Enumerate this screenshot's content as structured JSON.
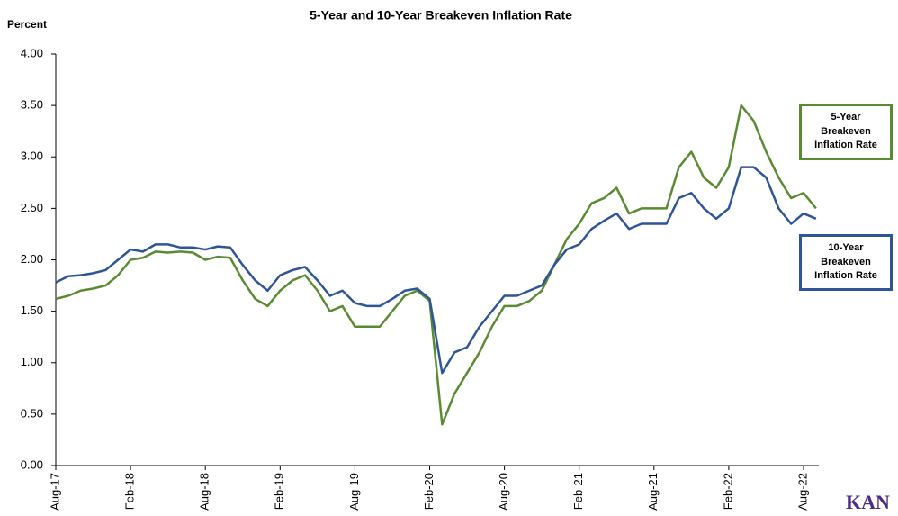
{
  "chart_data": {
    "type": "line",
    "title": "5-Year and 10-Year Breakeven Inflation Rate",
    "y_label": "Percent",
    "logo": "KAN",
    "categories": [
      "Aug-17",
      null,
      null,
      null,
      null,
      null,
      "Feb-18",
      null,
      null,
      null,
      null,
      null,
      "Aug-18",
      null,
      null,
      null,
      null,
      null,
      "Feb-19",
      null,
      null,
      null,
      null,
      null,
      "Aug-19",
      null,
      null,
      null,
      null,
      null,
      "Feb-20",
      null,
      null,
      null,
      null,
      null,
      "Aug-20",
      null,
      null,
      null,
      null,
      null,
      "Feb-21",
      null,
      null,
      null,
      null,
      null,
      "Aug-21",
      null,
      null,
      null,
      null,
      null,
      "Feb-22",
      null,
      null,
      null,
      null,
      null,
      "Aug-22",
      null
    ],
    "series": [
      {
        "name": "5-Year Breakeven Inflation Rate",
        "color": "#5a8a32",
        "values": [
          1.62,
          1.65,
          1.7,
          1.72,
          1.75,
          1.85,
          2.0,
          2.02,
          2.08,
          2.07,
          2.08,
          2.07,
          2.0,
          2.03,
          2.02,
          1.8,
          1.62,
          1.55,
          1.7,
          1.8,
          1.85,
          1.7,
          1.5,
          1.55,
          1.35,
          1.35,
          1.35,
          1.5,
          1.65,
          1.7,
          1.6,
          0.4,
          0.7,
          0.9,
          1.1,
          1.35,
          1.55,
          1.55,
          1.6,
          1.7,
          1.95,
          2.2,
          2.35,
          2.55,
          2.6,
          2.7,
          2.45,
          2.5,
          2.5,
          2.5,
          2.9,
          3.05,
          2.8,
          2.7,
          2.9,
          3.5,
          3.35,
          3.05,
          2.8,
          2.6,
          2.65,
          2.5
        ]
      },
      {
        "name": "10-Year Breakeven Inflation Rate",
        "color": "#2e5597",
        "values": [
          1.78,
          1.84,
          1.85,
          1.87,
          1.9,
          2.0,
          2.1,
          2.08,
          2.15,
          2.15,
          2.12,
          2.12,
          2.1,
          2.13,
          2.12,
          1.95,
          1.8,
          1.7,
          1.85,
          1.9,
          1.93,
          1.8,
          1.65,
          1.7,
          1.58,
          1.55,
          1.55,
          1.62,
          1.7,
          1.72,
          1.62,
          0.9,
          1.1,
          1.15,
          1.35,
          1.5,
          1.65,
          1.65,
          1.7,
          1.75,
          1.95,
          2.1,
          2.15,
          2.3,
          2.38,
          2.45,
          2.3,
          2.35,
          2.35,
          2.35,
          2.6,
          2.65,
          2.5,
          2.4,
          2.5,
          2.9,
          2.9,
          2.8,
          2.5,
          2.35,
          2.45,
          2.4
        ]
      }
    ],
    "ylim": [
      0,
      4
    ],
    "yticks": [
      {
        "value": 0,
        "label": "0.00"
      },
      {
        "value": 0.5,
        "label": "0.50"
      },
      {
        "value": 1,
        "label": "1.00"
      },
      {
        "value": 1.5,
        "label": "1.50"
      },
      {
        "value": 2,
        "label": "2.00"
      },
      {
        "value": 2.5,
        "label": "2.50"
      },
      {
        "value": 3,
        "label": "3.00"
      },
      {
        "value": 3.5,
        "label": "3.50"
      },
      {
        "value": 4,
        "label": "4.00"
      }
    ],
    "grid": false
  }
}
